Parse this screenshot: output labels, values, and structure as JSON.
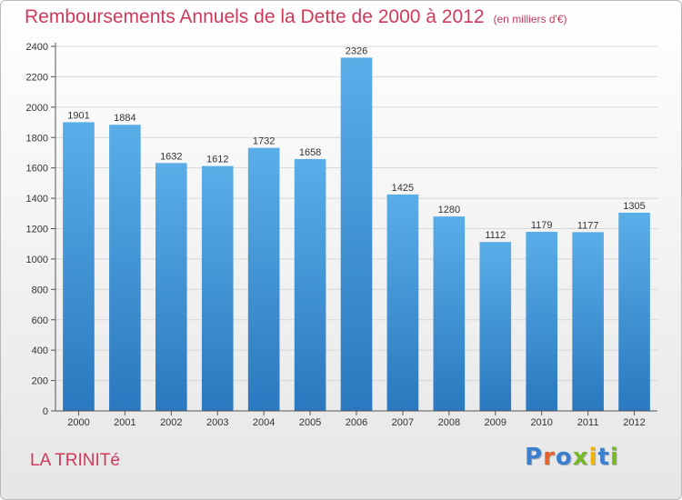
{
  "title": "Remboursements Annuels de la Dette de 2000 à 2012",
  "subtitle": "(en milliers d'€)",
  "commune": "LA TRINITé",
  "logo": {
    "letters": [
      "P",
      "r",
      "o",
      "x",
      "i",
      "t",
      "i"
    ],
    "colors": [
      "#3a7fd0",
      "#e8612a",
      "#3a7fd0",
      "#78b829",
      "#f0b400",
      "#3a7fd0",
      "#78b829"
    ]
  },
  "colors": {
    "accent": "#d0395a",
    "bar_top": "#5aaee8",
    "bar_bottom": "#2a78bf",
    "grid": "#d8d8d8"
  },
  "chart_data": {
    "type": "bar",
    "categories": [
      "2000",
      "2001",
      "2002",
      "2003",
      "2004",
      "2005",
      "2006",
      "2007",
      "2008",
      "2009",
      "2010",
      "2011",
      "2012"
    ],
    "values": [
      1901,
      1884,
      1632,
      1612,
      1732,
      1658,
      2326,
      1425,
      1280,
      1112,
      1179,
      1177,
      1305
    ],
    "yticks": [
      0,
      200,
      400,
      600,
      800,
      1000,
      1200,
      1400,
      1600,
      1800,
      2000,
      2200,
      2400
    ],
    "ylim": [
      0,
      2400
    ],
    "grid": true,
    "legend": "none",
    "xlabel": "",
    "ylabel": ""
  }
}
